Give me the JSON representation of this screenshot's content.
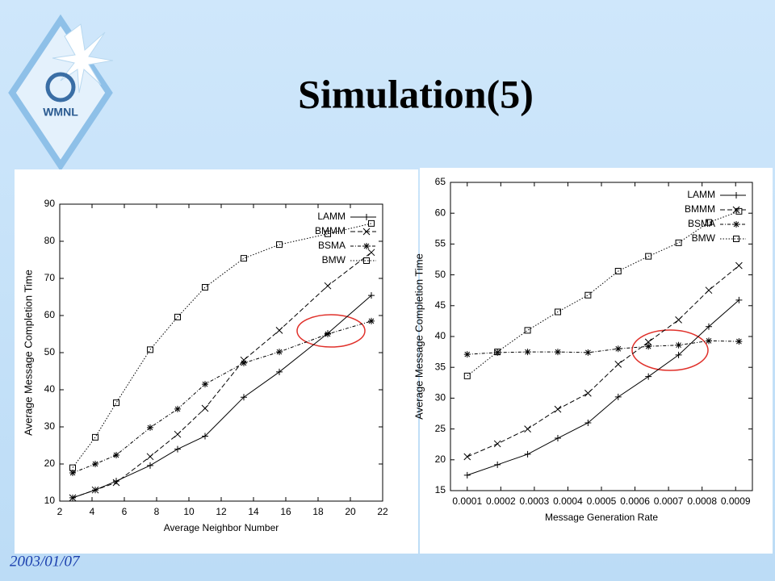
{
  "title": "Simulation(5)",
  "date": "2003/01/07",
  "logo": "WMNL",
  "chart_data": [
    {
      "type": "line",
      "ylabel": "Average Message Completion Time",
      "xlabel": "Average Neighbor Number",
      "xlim": [
        2,
        22
      ],
      "xticks": [
        2,
        4,
        6,
        8,
        10,
        12,
        14,
        16,
        18,
        20,
        22
      ],
      "ylim": [
        10,
        90
      ],
      "yticks": [
        10,
        20,
        30,
        40,
        50,
        60,
        70,
        80,
        90
      ],
      "legend": "upper right",
      "x": [
        2.8,
        4.2,
        5.5,
        7.6,
        9.3,
        11,
        13.4,
        15.6,
        18.6,
        21.3
      ],
      "series": [
        {
          "name": "LAMM",
          "color": "#000000",
          "marker": "plus",
          "dash": "solid",
          "values": [
            10.9,
            13,
            15.4,
            19.6,
            24,
            27.5,
            38,
            44.8,
            55.2,
            65.4
          ]
        },
        {
          "name": "BMMM",
          "color": "#000000",
          "marker": "cross",
          "dash": "dashed",
          "values": [
            10.9,
            13,
            15,
            22,
            28,
            35,
            48,
            56,
            68,
            77
          ]
        },
        {
          "name": "BSMA",
          "color": "#000000",
          "marker": "star",
          "dash": "dashdot",
          "values": [
            17.6,
            20,
            22.4,
            29.8,
            34.8,
            41.5,
            47.2,
            50.2,
            55,
            58.5
          ]
        },
        {
          "name": "BMW",
          "color": "#000000",
          "marker": "square",
          "dash": "dotted",
          "values": [
            19,
            27.2,
            36.5,
            50.8,
            59.6,
            67.6,
            75.4,
            79.1,
            82,
            84.8
          ]
        }
      ]
    },
    {
      "type": "line",
      "ylabel": "Average Message Completion Time",
      "xlabel": "Message Generation Rate",
      "xlim": [
        5e-05,
        0.00095
      ],
      "xticks": [
        0.0001,
        0.0002,
        0.0003,
        0.0004,
        0.0005,
        0.0006,
        0.0007,
        0.0008,
        0.0009
      ],
      "ylim": [
        15,
        65
      ],
      "yticks": [
        15,
        20,
        25,
        30,
        35,
        40,
        45,
        50,
        55,
        60,
        65
      ],
      "legend": "upper right",
      "x": [
        0.0001,
        0.00019,
        0.00028,
        0.00037,
        0.00046,
        0.00055,
        0.00064,
        0.00073,
        0.00082,
        0.00091
      ],
      "series": [
        {
          "name": "LAMM",
          "color": "#000000",
          "marker": "plus",
          "dash": "solid",
          "values": [
            17.5,
            19.2,
            20.9,
            23.5,
            26,
            30.2,
            33.5,
            37,
            41.6,
            45.9
          ]
        },
        {
          "name": "BMMM",
          "color": "#000000",
          "marker": "cross",
          "dash": "dashed",
          "values": [
            20.5,
            22.6,
            25,
            28.2,
            30.8,
            35.5,
            39.1,
            42.7,
            47.5,
            51.5
          ]
        },
        {
          "name": "BSMA",
          "color": "#000000",
          "marker": "star",
          "dash": "dashdot",
          "values": [
            37.1,
            37.4,
            37.5,
            37.5,
            37.4,
            38,
            38.4,
            38.6,
            39.3,
            39.2
          ]
        },
        {
          "name": "BMW",
          "color": "#000000",
          "marker": "square",
          "dash": "dotted",
          "values": [
            33.6,
            37.5,
            41,
            44,
            46.7,
            50.6,
            53,
            55.2,
            58.5,
            60.3
          ]
        }
      ]
    }
  ]
}
